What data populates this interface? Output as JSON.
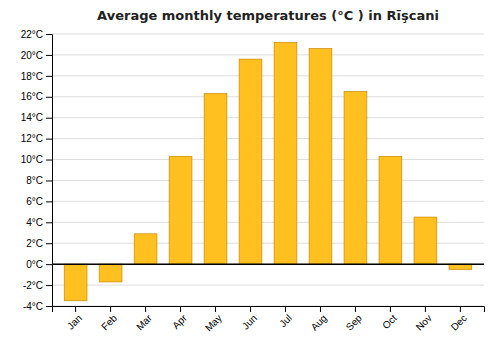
{
  "chart_data": {
    "type": "bar",
    "title": "Average monthly temperatures (°C ) in Rīşcani",
    "categories": [
      "Jan",
      "Feb",
      "Mar",
      "Apr",
      "May",
      "Jun",
      "Jul",
      "Aug",
      "Sep",
      "Oct",
      "Nov",
      "Dec"
    ],
    "values": [
      -3.5,
      -1.7,
      2.9,
      10.3,
      16.3,
      19.6,
      21.2,
      20.6,
      16.5,
      10.3,
      4.5,
      -0.5
    ],
    "color": "#FFC020",
    "ylim": [
      -4,
      22
    ],
    "yticks": [
      {
        "value": -4,
        "label": "-4°C"
      },
      {
        "value": -2,
        "label": "-2°C"
      },
      {
        "value": 0,
        "label": "0°C"
      },
      {
        "value": 2,
        "label": "2°C"
      },
      {
        "value": 4,
        "label": "4°C"
      },
      {
        "value": 6,
        "label": "6°C"
      },
      {
        "value": 8,
        "label": "8°C"
      },
      {
        "value": 10,
        "label": "10°C"
      },
      {
        "value": 12,
        "label": "12°C"
      },
      {
        "value": 14,
        "label": "14°C"
      },
      {
        "value": 16,
        "label": "16°C"
      },
      {
        "value": 18,
        "label": "18°C"
      },
      {
        "value": 20,
        "label": "20°C"
      },
      {
        "value": 22,
        "label": "22°C"
      }
    ],
    "grid": true
  }
}
